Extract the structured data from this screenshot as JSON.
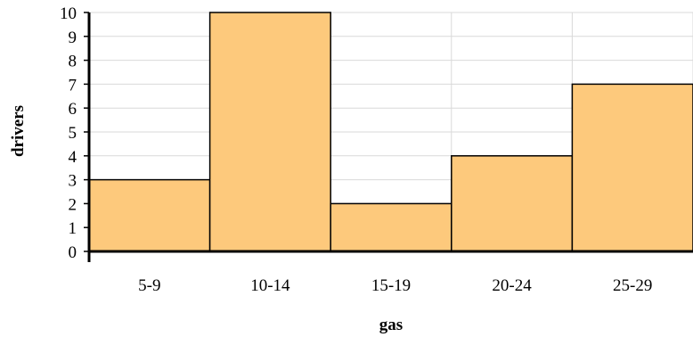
{
  "chart_data": {
    "type": "bar",
    "categories": [
      "5-9",
      "10-14",
      "15-19",
      "20-24",
      "25-29"
    ],
    "values": [
      3,
      10,
      2,
      4,
      7
    ],
    "xlabel": "gas",
    "ylabel": "drivers",
    "ylim": [
      0,
      10
    ],
    "yticks": [
      0,
      1,
      2,
      3,
      4,
      5,
      6,
      7,
      8,
      9,
      10
    ],
    "grid": true,
    "legend": "none",
    "bar_color": "#fdc97c",
    "bar_edge_color": "#000000",
    "grid_color": "#d9d9d9"
  }
}
